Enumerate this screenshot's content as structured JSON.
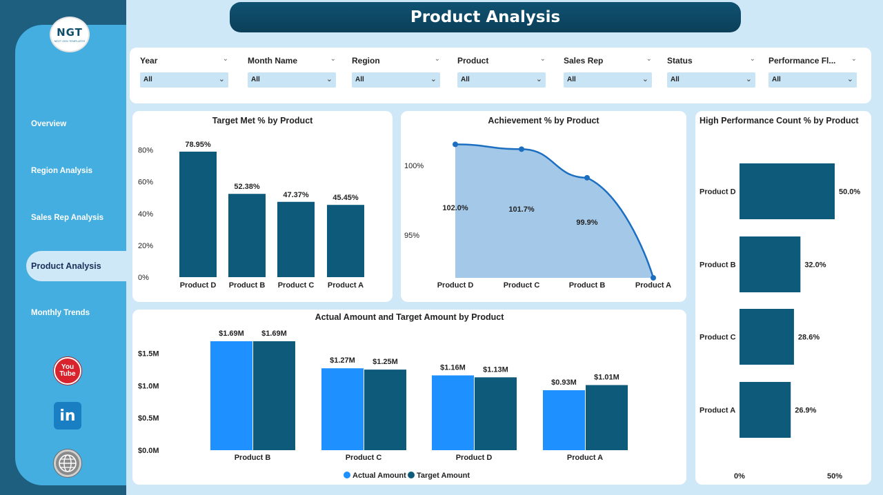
{
  "header": {
    "title": "Product Analysis"
  },
  "logo": {
    "text": "NGT",
    "subtext": "NEXT GEN TEMPLATES"
  },
  "sidebar": {
    "items": [
      {
        "label": "Overview"
      },
      {
        "label": "Region Analysis"
      },
      {
        "label": "Sales Rep Analysis"
      },
      {
        "label": "Product Analysis",
        "active": true
      },
      {
        "label": "Monthly Trends"
      }
    ],
    "social": [
      {
        "name": "youtube",
        "text": "You\nTube",
        "icon": "youtube-icon"
      },
      {
        "name": "linkedin",
        "text": "in",
        "icon": "linkedin-icon"
      },
      {
        "name": "website",
        "icon": "globe-icon"
      }
    ]
  },
  "filters": [
    {
      "label": "Year",
      "value": "All"
    },
    {
      "label": "Month Name",
      "value": "All"
    },
    {
      "label": "Region",
      "value": "All"
    },
    {
      "label": "Product",
      "value": "All"
    },
    {
      "label": "Sales Rep",
      "value": "All"
    },
    {
      "label": "Status",
      "value": "All"
    },
    {
      "label": "Performance Fl...",
      "value": "All"
    }
  ],
  "colors": {
    "dark_teal": "#0e5a7a",
    "bright_blue": "#1e90ff",
    "area_fill": "#a4c8e8",
    "line": "#1c6fc0"
  },
  "chart_data": [
    {
      "type": "bar",
      "title": "Target Met % by Product",
      "categories": [
        "Product D",
        "Product B",
        "Product C",
        "Product A"
      ],
      "values": [
        78.95,
        52.38,
        47.37,
        45.45
      ],
      "value_labels": [
        "78.95%",
        "52.38%",
        "47.37%",
        "45.45%"
      ],
      "yticks": [
        "0%",
        "20%",
        "40%",
        "60%",
        "80%"
      ],
      "ylim": [
        0,
        85
      ]
    },
    {
      "type": "area",
      "title": "Achievement % by Product",
      "categories": [
        "Product D",
        "Product C",
        "Product B",
        "Product A"
      ],
      "values": [
        102.0,
        101.7,
        99.9,
        93.6
      ],
      "value_labels": [
        "102.0%",
        "101.7%",
        "99.9%",
        ""
      ],
      "yticks": [
        "95%",
        "100%"
      ],
      "ylim": [
        93.6,
        102.8
      ]
    },
    {
      "type": "bar",
      "orientation": "horizontal",
      "title": "High Performance Count % by Product",
      "categories": [
        "Product D",
        "Product B",
        "Product C",
        "Product A"
      ],
      "values": [
        50.0,
        32.0,
        28.6,
        26.9
      ],
      "value_labels": [
        "50.0%",
        "32.0%",
        "28.6%",
        "26.9%"
      ],
      "xticks": [
        "0%",
        "50%"
      ],
      "xlim": [
        0,
        50
      ]
    },
    {
      "type": "bar",
      "title": "Actual Amount and Target Amount by Product",
      "categories": [
        "Product B",
        "Product C",
        "Product D",
        "Product A"
      ],
      "series": [
        {
          "name": "Actual Amount",
          "values": [
            1.69,
            1.27,
            1.16,
            0.93
          ],
          "labels": [
            "$1.69M",
            "$1.27M",
            "$1.16M",
            "$0.93M"
          ]
        },
        {
          "name": "Target Amount",
          "values": [
            1.69,
            1.25,
            1.13,
            1.01
          ],
          "labels": [
            "$1.69M",
            "$1.25M",
            "$1.13M",
            "$1.01M"
          ]
        }
      ],
      "yticks": [
        "$0.0M",
        "$0.5M",
        "$1.0M",
        "$1.5M"
      ],
      "ylim": [
        0,
        1.7
      ],
      "legend": "bottom-center"
    }
  ]
}
